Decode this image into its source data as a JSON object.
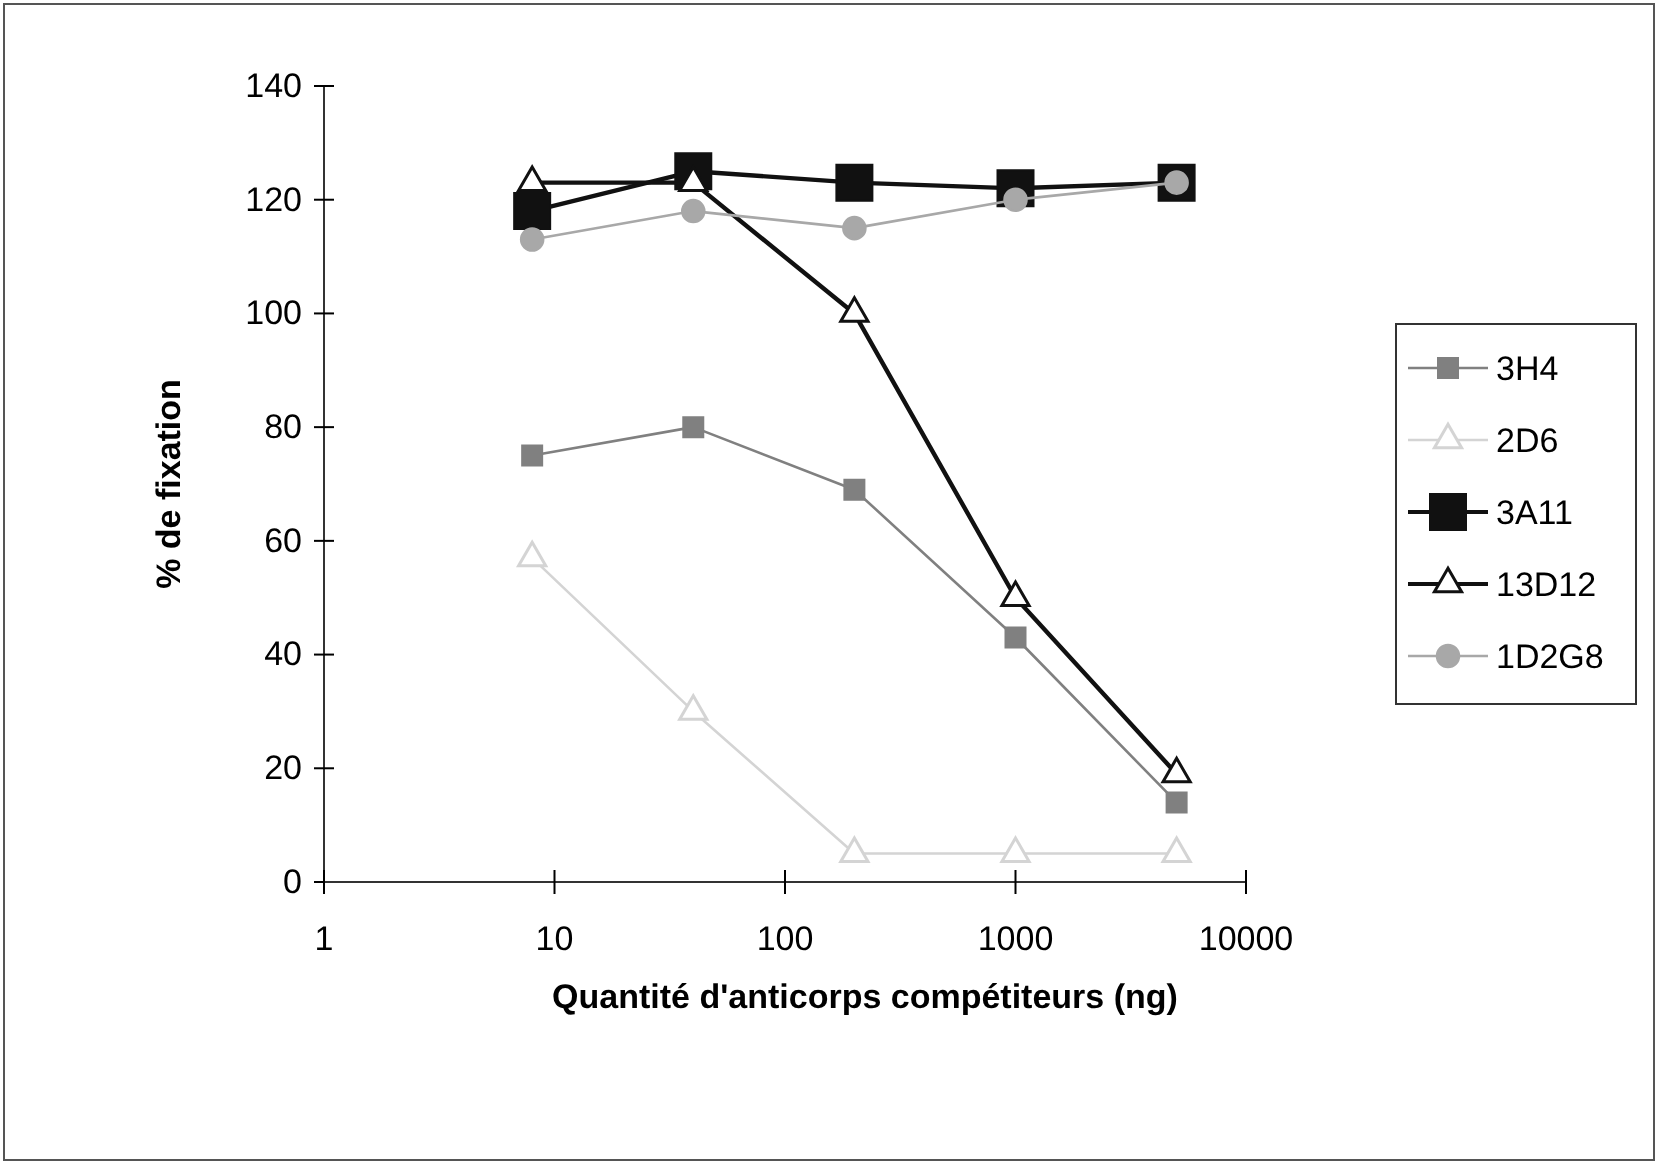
{
  "chart_data": {
    "type": "line",
    "xlabel": "Quantité d'anticorps compétiteurs (ng)",
    "ylabel": "% de fixation",
    "log": "x",
    "grid": false,
    "legend": "right",
    "x": [
      8,
      40,
      200,
      1000,
      5000
    ],
    "xlim": [
      1,
      10000
    ],
    "xticks": [
      1,
      10,
      100,
      1000,
      10000
    ],
    "ylim": [
      0,
      140
    ],
    "yticks": [
      0,
      20,
      40,
      60,
      80,
      100,
      120,
      140
    ],
    "series": [
      {
        "name": "3H4",
        "color": "#808080",
        "marker": "square",
        "values": [
          75,
          80,
          69,
          43,
          14
        ]
      },
      {
        "name": "2D6",
        "color": "#d4d4d4",
        "marker": "triangle",
        "values": [
          57,
          30,
          5,
          5,
          5
        ]
      },
      {
        "name": "3A11",
        "color": "#111111",
        "marker": "square",
        "values": [
          118,
          125,
          123,
          122,
          123
        ]
      },
      {
        "name": "13D12",
        "color": "#111111",
        "marker": "triangle",
        "values": [
          123,
          123,
          100,
          50,
          19
        ]
      },
      {
        "name": "1D2G8",
        "color": "#a8a8a8",
        "marker": "circle",
        "values": [
          113,
          118,
          115,
          120,
          123
        ]
      }
    ]
  }
}
